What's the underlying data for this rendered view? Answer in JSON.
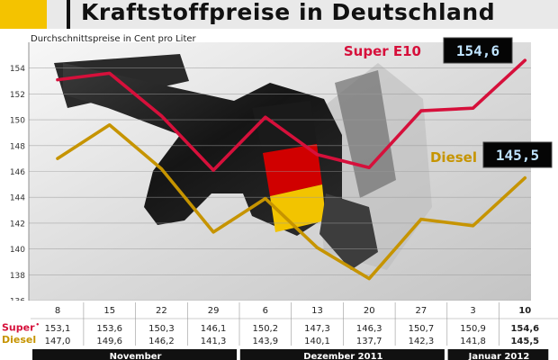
{
  "title": "Kraftstoffpreise in Deutschland",
  "subtitle": "Durchschnittspreise in Cent pro Liter",
  "colors": {
    "super": "#d6103b",
    "diesel": "#c69400",
    "header_bg": "#e9e9e9",
    "accent_yellow": "#f4c300",
    "month_bar": "#111111"
  },
  "table_labels": {
    "super": "Super",
    "super_mark": "•",
    "diesel": "Diesel"
  },
  "chart_data": {
    "type": "line",
    "title": "Kraftstoffpreise in Deutschland",
    "subtitle": "Durchschnittspreise in Cent pro Liter",
    "ylim": [
      136,
      156
    ],
    "yticks": [
      "136",
      "138",
      "140",
      "142",
      "144",
      "146",
      "148",
      "150",
      "152",
      "154"
    ],
    "grid": true,
    "categories": [
      "8",
      "15",
      "22",
      "29",
      "6",
      "13",
      "20",
      "27",
      "3",
      "10"
    ],
    "months": [
      {
        "label": "November",
        "from": 0,
        "to": 3
      },
      {
        "label": "Dezember 2011",
        "from": 4,
        "to": 7
      },
      {
        "label": "Januar 2012",
        "from": 8,
        "to": 9
      }
    ],
    "series": [
      {
        "name": "Super E10",
        "values": [
          153.1,
          153.6,
          150.3,
          146.1,
          150.2,
          147.3,
          146.3,
          150.7,
          150.9,
          154.6
        ],
        "table": [
          "153,1",
          "153,6",
          "150,3",
          "146,1",
          "150,2",
          "147,3",
          "146,3",
          "150,7",
          "150,9",
          "154,6"
        ],
        "display": "154,6"
      },
      {
        "name": "Diesel",
        "values": [
          147.0,
          149.6,
          146.2,
          141.3,
          143.9,
          140.1,
          137.7,
          142.3,
          141.8,
          145.5
        ],
        "table": [
          "147,0",
          "149,6",
          "146,2",
          "141,3",
          "143,9",
          "140,1",
          "137,7",
          "142,3",
          "141,8",
          "145,5"
        ],
        "display": "145,5"
      }
    ]
  }
}
